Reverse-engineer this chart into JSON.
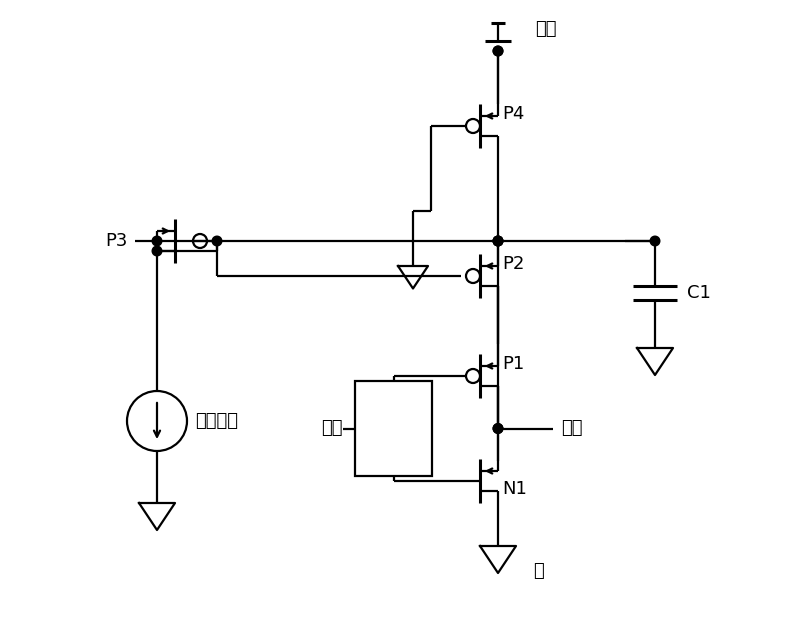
{
  "bg": "#ffffff",
  "lc": "#000000",
  "lw": 1.6,
  "lwt": 2.2,
  "fs": 13,
  "cjk": "SimSun",
  "labels": {
    "power": "电源",
    "p4": "P4",
    "p3": "P3",
    "p2": "P2",
    "p1": "P1",
    "n1": "N1",
    "c1": "C1",
    "dc": "直流电流",
    "input": "输入",
    "output": "输出",
    "gnd": "地"
  },
  "xlim": [
    0,
    8
  ],
  "ylim": [
    0,
    6.31
  ]
}
